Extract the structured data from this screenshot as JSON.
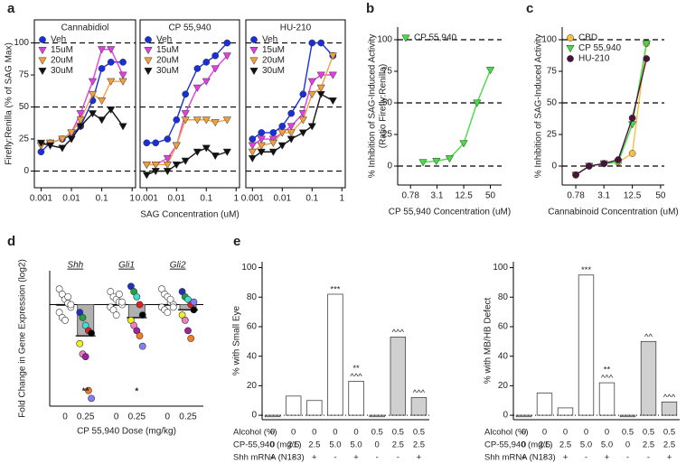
{
  "chart_data": [
    {
      "type": "scatter",
      "panel": "a",
      "title": "Cannabidiol",
      "ylabel": "Firefly:Renilla (% of SAG Max)",
      "xlog": true,
      "xlim": [
        0.0006,
        1.3
      ],
      "xticks": [
        0.001,
        0.01,
        0.1,
        1
      ],
      "ylim": [
        -13,
        118
      ],
      "yticks": [
        0,
        25,
        50,
        75,
        100
      ],
      "dashed_lines": [
        0,
        50,
        100
      ],
      "legend": "upper left",
      "x": [
        0.001,
        0.002,
        0.005,
        0.01,
        0.02,
        0.05,
        0.1,
        0.2,
        0.5
      ],
      "series": [
        {
          "name": "Veh",
          "color": "#1a2fd6",
          "marker": "circle",
          "values": [
            15,
            22,
            25,
            28,
            35,
            55,
            80,
            85,
            85
          ]
        },
        {
          "name": "15uM",
          "color": "#e23fe2",
          "marker": "triangle-down",
          "values": [
            20,
            22,
            25,
            30,
            45,
            70,
            95,
            95,
            75
          ]
        },
        {
          "name": "20uM",
          "color": "#f0a040",
          "marker": "triangle-down",
          "values": [
            20,
            22,
            25,
            30,
            40,
            60,
            55,
            70,
            70
          ]
        },
        {
          "name": "30uM",
          "color": "#111111",
          "marker": "triangle-down",
          "values": [
            22,
            20,
            18,
            25,
            35,
            45,
            40,
            48,
            35
          ]
        }
      ]
    },
    {
      "type": "scatter",
      "title": "CP 55,940",
      "xlabel": "SAG Concentration (uM)",
      "xlog": true,
      "xlim": [
        0.0006,
        1.3
      ],
      "xticks": [
        0.001,
        0.01,
        0.1,
        1
      ],
      "ylim": [
        -13,
        118
      ],
      "dashed_lines": [
        0,
        50,
        100
      ],
      "legend": "upper left",
      "x": [
        0.001,
        0.002,
        0.005,
        0.01,
        0.02,
        0.05,
        0.1,
        0.2,
        0.5
      ],
      "series": [
        {
          "name": "Veh",
          "color": "#1a2fd6",
          "marker": "circle",
          "values": [
            22,
            22,
            25,
            40,
            60,
            80,
            85,
            90,
            100
          ]
        },
        {
          "name": "15uM",
          "color": "#e23fe2",
          "marker": "triangle-down",
          "values": [
            5,
            5,
            10,
            20,
            45,
            65,
            70,
            80,
            90
          ]
        },
        {
          "name": "20uM",
          "color": "#f0a040",
          "marker": "triangle-down",
          "values": [
            5,
            5,
            5,
            20,
            40,
            40,
            40,
            38,
            40
          ]
        },
        {
          "name": "30uM",
          "color": "#111111",
          "marker": "triangle-down",
          "values": [
            -3,
            0,
            0,
            5,
            8,
            15,
            18,
            12,
            15
          ]
        }
      ]
    },
    {
      "type": "scatter",
      "title": "HU-210",
      "xlog": true,
      "xlim": [
        0.0006,
        1.3
      ],
      "xticks": [
        0.001,
        0.01,
        0.1,
        1
      ],
      "ylim": [
        -13,
        118
      ],
      "dashed_lines": [
        0,
        50,
        100
      ],
      "legend": "upper left",
      "x": [
        0.001,
        0.002,
        0.005,
        0.01,
        0.02,
        0.05,
        0.1,
        0.2,
        0.5
      ],
      "series": [
        {
          "name": "Veh",
          "color": "#1a2fd6",
          "marker": "circle",
          "values": [
            25,
            30,
            30,
            35,
            45,
            60,
            100,
            100,
            90
          ]
        },
        {
          "name": "15uM",
          "color": "#e23fe2",
          "marker": "triangle-down",
          "values": [
            20,
            25,
            25,
            30,
            35,
            45,
            70,
            75,
            75
          ]
        },
        {
          "name": "20uM",
          "color": "#f0a040",
          "marker": "triangle-down",
          "values": [
            15,
            20,
            22,
            30,
            30,
            40,
            60,
            65,
            90
          ]
        },
        {
          "name": "30uM",
          "color": "#111111",
          "marker": "triangle-down",
          "values": [
            10,
            15,
            15,
            20,
            25,
            30,
            35,
            60,
            55
          ]
        }
      ]
    },
    {
      "type": "scatter",
      "panel": "b",
      "ylabel": [
        "% Inhibition of SAG-Induced Activity",
        "(Ratio Firefly:Renilla)"
      ],
      "xlabel": "CP 55,940 Concentration (uM)",
      "xlog": true,
      "xlim": [
        0.4,
        90
      ],
      "xticks": [
        0.78,
        3.1,
        12.5,
        50
      ],
      "ylim": [
        -15,
        110
      ],
      "yticks": [
        0,
        25,
        50,
        75,
        100
      ],
      "dashed_lines": [
        0,
        50,
        100
      ],
      "legend": "upper left",
      "series": [
        {
          "name": "CP 55,940",
          "color": "#44dd44",
          "marker": "triangle-down",
          "x": [
            1.5,
            3,
            6,
            12.5,
            25,
            50
          ],
          "values": [
            3,
            4,
            6,
            18,
            50,
            76
          ]
        }
      ]
    },
    {
      "type": "scatter",
      "panel": "c",
      "ylabel": "% Inhibition of SAG-Induced Activity",
      "xlabel": "Cannabinoid Concentration (uM)",
      "xlog": true,
      "xlim": [
        0.4,
        60
      ],
      "xticks": [
        0.78,
        3.1,
        12.5,
        50
      ],
      "ylim": [
        -15,
        110
      ],
      "yticks": [
        0,
        25,
        50,
        75,
        100
      ],
      "dashed_lines": [
        0,
        50,
        100
      ],
      "legend": "upper left",
      "series": [
        {
          "name": "CBD",
          "color": "#f8c040",
          "marker": "circle",
          "x": [
            0.78,
            1.5,
            3.1,
            6.25,
            12.5,
            25
          ],
          "values": [
            -7,
            0,
            2,
            3,
            10,
            97
          ]
        },
        {
          "name": "CP 55,940",
          "color": "#44dd44",
          "marker": "triangle-down",
          "x": [
            0.78,
            1.5,
            3.1,
            6.25,
            12.5,
            25
          ],
          "values": [
            -7,
            0,
            2,
            3,
            33,
            97
          ]
        },
        {
          "name": "HU-210",
          "color": "#4a1040",
          "marker": "circle",
          "x": [
            0.78,
            1.5,
            3.1,
            6.25,
            12.5,
            25
          ],
          "values": [
            -7,
            0,
            2,
            5,
            38,
            85
          ]
        }
      ]
    },
    {
      "type": "dot",
      "panel": "d",
      "ylabel": "Fold Change in Gene Expression (log2)",
      "xlabel": "CP 55,940 Dose (mg/kg)",
      "ylim": [
        -3.9,
        1.3
      ],
      "control_color": "#ffffff",
      "box_colors": [
        "#ffffff",
        "#b0b0b0"
      ],
      "point_colors": [
        "#2030c0",
        "#20a040",
        "#40e0d0",
        "#e02020",
        "#000000",
        "#f0f020",
        "#f080c0",
        "#a020a0",
        "#f08020",
        "#8080ff"
      ],
      "groups": [
        {
          "name": "Shh",
          "doses": [
            {
              "label": "0",
              "mean": 0,
              "points": [
                0.6,
                0.4,
                0.2,
                0.05,
                -0.1,
                -0.3,
                -0.5,
                -0.6,
                0.3,
                0.0
              ]
            },
            {
              "label": "0.25",
              "mean": -1.2,
              "annotation": "**",
              "points": [
                -0.3,
                -0.5,
                -0.8,
                -1.0,
                -1.1,
                -1.5,
                -1.9,
                -2.0,
                -3.3,
                -3.6
              ]
            }
          ]
        },
        {
          "name": "Gli1",
          "doses": [
            {
              "label": "0",
              "mean": 0,
              "points": [
                0.5,
                0.3,
                0.2,
                0.1,
                0,
                -0.1,
                -0.2,
                -0.4,
                0.4,
                0.1
              ]
            },
            {
              "label": "0.25",
              "mean": -0.5,
              "annotation": "*",
              "points": [
                0.7,
                0.5,
                0.3,
                0,
                -0.4,
                -0.6,
                -0.8,
                -1.0,
                -1.2,
                -1.6
              ]
            }
          ]
        },
        {
          "name": "Gli2",
          "doses": [
            {
              "label": "0",
              "mean": 0,
              "points": [
                0.6,
                0.4,
                0.3,
                0.1,
                0,
                -0.1,
                -0.2,
                -0.3,
                0.2,
                -0.1
              ]
            },
            {
              "label": "0.25",
              "mean": -0.2,
              "points": [
                0.5,
                0.3,
                0.2,
                0,
                -0.2,
                -0.4,
                -0.6,
                -1.0,
                -1.3,
                0.1
              ]
            }
          ]
        }
      ]
    },
    {
      "type": "bar",
      "panel": "e",
      "ylabel": "% with Small Eye",
      "ylim": [
        -3,
        104
      ],
      "yticks": [
        0,
        20,
        40,
        60,
        80,
        100
      ],
      "rows": [
        {
          "name": "Alcohol (%)",
          "values": [
            "0",
            "0",
            "0",
            "0",
            "0",
            "0.5",
            "0.5",
            "0.5"
          ]
        },
        {
          "name": "CP-55,940 (mg/L)",
          "values": [
            "0",
            "2.5",
            "2.5",
            "5.0",
            "5.0",
            "0",
            "2.5",
            "2.5"
          ]
        },
        {
          "name": "Shh mRNA (N183)",
          "values": [
            "+",
            "-",
            "+",
            "-",
            "+",
            "-",
            "-",
            "+"
          ]
        }
      ],
      "values": [
        -1,
        13,
        10,
        82,
        23,
        -1,
        53,
        12
      ],
      "bar_colors": [
        "#d0d0d0",
        "#ffffff",
        "#ffffff",
        "#ffffff",
        "#ffffff",
        "#d0d0d0",
        "#d0d0d0",
        "#d0d0d0"
      ],
      "annotations": [
        null,
        null,
        null,
        [
          "***"
        ],
        [
          "**",
          "^^^"
        ],
        null,
        [
          "^^^"
        ],
        [
          "^^^"
        ]
      ]
    },
    {
      "type": "bar",
      "ylabel": "% with MB/HB Defect",
      "ylim": [
        -3,
        104
      ],
      "yticks": [
        0,
        20,
        40,
        60,
        80,
        100
      ],
      "rows": [
        {
          "name": "Alcohol (%)",
          "values": [
            "0",
            "0",
            "0",
            "0",
            "0",
            "0.5",
            "0.5",
            "0.5"
          ]
        },
        {
          "name": "CP-55,940 (mg/L)",
          "values": [
            "0",
            "2.5",
            "2.5",
            "5.0",
            "5.0",
            "0",
            "2.5",
            "2.5"
          ]
        },
        {
          "name": "Shh mRNA (N183)",
          "values": [
            "+",
            "-",
            "+",
            "-",
            "+",
            "-",
            "-",
            "+"
          ]
        }
      ],
      "values": [
        -1,
        15,
        5,
        95,
        22,
        -1,
        50,
        9
      ],
      "bar_colors": [
        "#d0d0d0",
        "#ffffff",
        "#ffffff",
        "#ffffff",
        "#ffffff",
        "#d0d0d0",
        "#d0d0d0",
        "#d0d0d0"
      ],
      "annotations": [
        null,
        null,
        null,
        [
          "***"
        ],
        [
          "**",
          "^^^"
        ],
        null,
        [
          "^^"
        ],
        [
          "^^^"
        ]
      ]
    }
  ]
}
